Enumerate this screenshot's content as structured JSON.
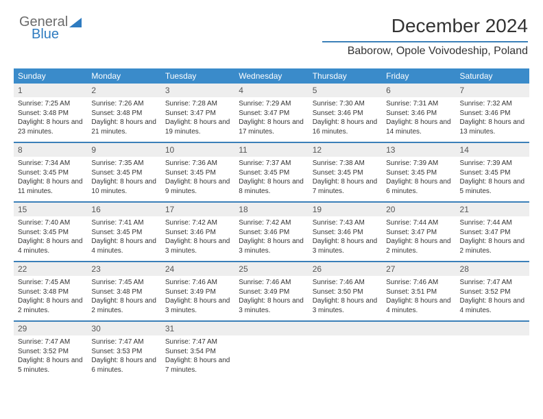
{
  "brand": {
    "word1": "General",
    "word2": "Blue",
    "color_gray": "#6b6b6b",
    "color_blue": "#2e7bc0"
  },
  "header": {
    "title": "December 2024",
    "location": "Baborow, Opole Voivodeship, Poland",
    "title_fontsize": 28,
    "location_fontsize": 16,
    "rule_color": "#3a7fb8"
  },
  "styling": {
    "header_row_bg": "#3a8bca",
    "header_row_fg": "#ffffff",
    "daynum_bg": "#eeeeee",
    "week_border_color": "#3a7fb8",
    "body_font": "Arial",
    "cell_fontsize": 10,
    "daynum_fontsize": 12
  },
  "dayNames": [
    "Sunday",
    "Monday",
    "Tuesday",
    "Wednesday",
    "Thursday",
    "Friday",
    "Saturday"
  ],
  "weeks": [
    [
      {
        "d": "1",
        "sr": "7:25 AM",
        "ss": "3:48 PM",
        "h": "8",
        "m": "23"
      },
      {
        "d": "2",
        "sr": "7:26 AM",
        "ss": "3:48 PM",
        "h": "8",
        "m": "21"
      },
      {
        "d": "3",
        "sr": "7:28 AM",
        "ss": "3:47 PM",
        "h": "8",
        "m": "19"
      },
      {
        "d": "4",
        "sr": "7:29 AM",
        "ss": "3:47 PM",
        "h": "8",
        "m": "17"
      },
      {
        "d": "5",
        "sr": "7:30 AM",
        "ss": "3:46 PM",
        "h": "8",
        "m": "16"
      },
      {
        "d": "6",
        "sr": "7:31 AM",
        "ss": "3:46 PM",
        "h": "8",
        "m": "14"
      },
      {
        "d": "7",
        "sr": "7:32 AM",
        "ss": "3:46 PM",
        "h": "8",
        "m": "13"
      }
    ],
    [
      {
        "d": "8",
        "sr": "7:34 AM",
        "ss": "3:45 PM",
        "h": "8",
        "m": "11"
      },
      {
        "d": "9",
        "sr": "7:35 AM",
        "ss": "3:45 PM",
        "h": "8",
        "m": "10"
      },
      {
        "d": "10",
        "sr": "7:36 AM",
        "ss": "3:45 PM",
        "h": "8",
        "m": "9"
      },
      {
        "d": "11",
        "sr": "7:37 AM",
        "ss": "3:45 PM",
        "h": "8",
        "m": "8"
      },
      {
        "d": "12",
        "sr": "7:38 AM",
        "ss": "3:45 PM",
        "h": "8",
        "m": "7"
      },
      {
        "d": "13",
        "sr": "7:39 AM",
        "ss": "3:45 PM",
        "h": "8",
        "m": "6"
      },
      {
        "d": "14",
        "sr": "7:39 AM",
        "ss": "3:45 PM",
        "h": "8",
        "m": "5"
      }
    ],
    [
      {
        "d": "15",
        "sr": "7:40 AM",
        "ss": "3:45 PM",
        "h": "8",
        "m": "4"
      },
      {
        "d": "16",
        "sr": "7:41 AM",
        "ss": "3:45 PM",
        "h": "8",
        "m": "4"
      },
      {
        "d": "17",
        "sr": "7:42 AM",
        "ss": "3:46 PM",
        "h": "8",
        "m": "3"
      },
      {
        "d": "18",
        "sr": "7:42 AM",
        "ss": "3:46 PM",
        "h": "8",
        "m": "3"
      },
      {
        "d": "19",
        "sr": "7:43 AM",
        "ss": "3:46 PM",
        "h": "8",
        "m": "3"
      },
      {
        "d": "20",
        "sr": "7:44 AM",
        "ss": "3:47 PM",
        "h": "8",
        "m": "2"
      },
      {
        "d": "21",
        "sr": "7:44 AM",
        "ss": "3:47 PM",
        "h": "8",
        "m": "2"
      }
    ],
    [
      {
        "d": "22",
        "sr": "7:45 AM",
        "ss": "3:48 PM",
        "h": "8",
        "m": "2"
      },
      {
        "d": "23",
        "sr": "7:45 AM",
        "ss": "3:48 PM",
        "h": "8",
        "m": "2"
      },
      {
        "d": "24",
        "sr": "7:46 AM",
        "ss": "3:49 PM",
        "h": "8",
        "m": "3"
      },
      {
        "d": "25",
        "sr": "7:46 AM",
        "ss": "3:49 PM",
        "h": "8",
        "m": "3"
      },
      {
        "d": "26",
        "sr": "7:46 AM",
        "ss": "3:50 PM",
        "h": "8",
        "m": "3"
      },
      {
        "d": "27",
        "sr": "7:46 AM",
        "ss": "3:51 PM",
        "h": "8",
        "m": "4"
      },
      {
        "d": "28",
        "sr": "7:47 AM",
        "ss": "3:52 PM",
        "h": "8",
        "m": "4"
      }
    ],
    [
      {
        "d": "29",
        "sr": "7:47 AM",
        "ss": "3:52 PM",
        "h": "8",
        "m": "5"
      },
      {
        "d": "30",
        "sr": "7:47 AM",
        "ss": "3:53 PM",
        "h": "8",
        "m": "6"
      },
      {
        "d": "31",
        "sr": "7:47 AM",
        "ss": "3:54 PM",
        "h": "8",
        "m": "7"
      },
      null,
      null,
      null,
      null
    ]
  ],
  "labels": {
    "sunrise": "Sunrise:",
    "sunset": "Sunset:",
    "daylight_prefix": "Daylight:",
    "hours_word": "hours",
    "and_word": "and",
    "minutes_word": "minutes."
  }
}
